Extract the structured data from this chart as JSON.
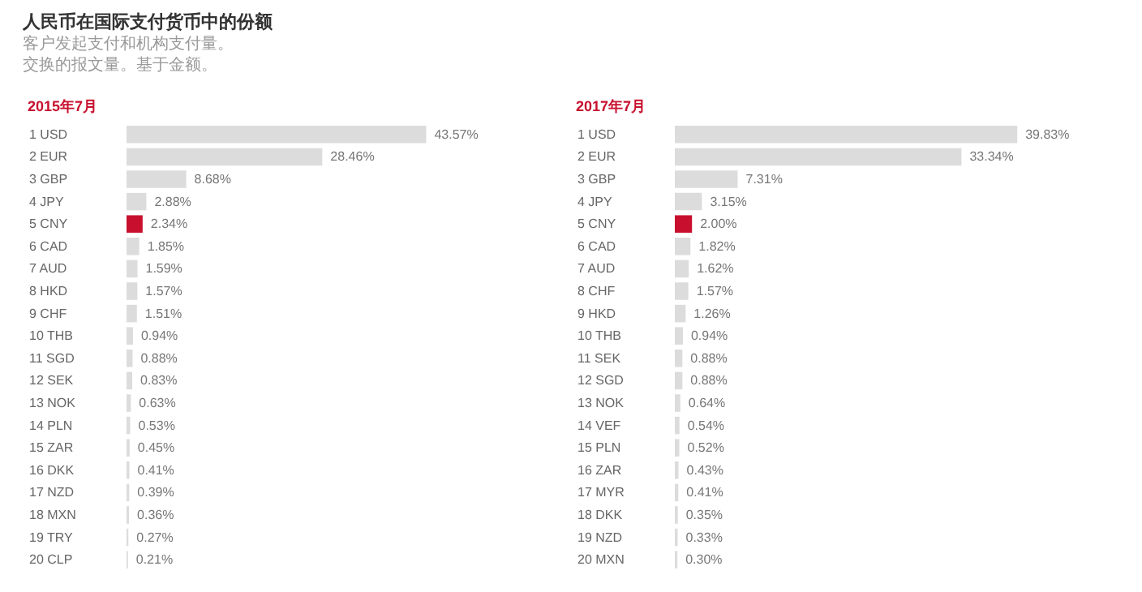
{
  "chart_data": [
    {
      "type": "bar",
      "orientation": "horizontal",
      "title": "2015年7月",
      "annotations": [
        "人民币在国际支付货币中的份额",
        "客户发起支付和机构支付量。",
        "交换的报文量。基于金额。"
      ],
      "categories": [
        "1 USD",
        "2 EUR",
        "3 GBP",
        "4 JPY",
        "5 CNY",
        "6 CAD",
        "7 AUD",
        "8 HKD",
        "9 CHF",
        "10 THB",
        "11 SGD",
        "12 SEK",
        "13 NOK",
        "14 PLN",
        "15 ZAR",
        "16 DKK",
        "17 NZD",
        "18 MXN",
        "19 TRY",
        "20 CLP"
      ],
      "values": [
        43.57,
        28.46,
        8.68,
        2.88,
        2.34,
        1.85,
        1.59,
        1.57,
        1.51,
        0.94,
        0.88,
        0.83,
        0.63,
        0.53,
        0.45,
        0.41,
        0.39,
        0.36,
        0.27,
        0.21
      ],
      "value_labels": [
        "43.57%",
        "28.46%",
        "8.68%",
        "2.88%",
        "2.34%",
        "1.85%",
        "1.59%",
        "1.57%",
        "1.51%",
        "0.94%",
        "0.88%",
        "0.83%",
        "0.63%",
        "0.53%",
        "0.45%",
        "0.41%",
        "0.39%",
        "0.36%",
        "0.27%",
        "0.21%"
      ],
      "colors": [
        "#dcdcdc",
        "#dcdcdc",
        "#dcdcdc",
        "#dcdcdc",
        "#c8102e",
        "#dcdcdc",
        "#dcdcdc",
        "#dcdcdc",
        "#dcdcdc",
        "#dcdcdc",
        "#dcdcdc",
        "#dcdcdc",
        "#dcdcdc",
        "#dcdcdc",
        "#dcdcdc",
        "#dcdcdc",
        "#dcdcdc",
        "#dcdcdc",
        "#dcdcdc",
        "#dcdcdc"
      ]
    },
    {
      "type": "bar",
      "orientation": "horizontal",
      "title": "2017年7月",
      "categories": [
        "1 USD",
        "2 EUR",
        "3 GBP",
        "4 JPY",
        "5 CNY",
        "6 CAD",
        "7 AUD",
        "8 CHF",
        "9 HKD",
        "10 THB",
        "11 SEK",
        "12 SGD",
        "13 NOK",
        "14 VEF",
        "15 PLN",
        "16 ZAR",
        "17 MYR",
        "18 DKK",
        "19 NZD",
        "20 MXN"
      ],
      "values": [
        39.83,
        33.34,
        7.31,
        3.15,
        2.0,
        1.82,
        1.62,
        1.57,
        1.26,
        0.94,
        0.88,
        0.88,
        0.64,
        0.54,
        0.52,
        0.43,
        0.41,
        0.35,
        0.33,
        0.3
      ],
      "value_labels": [
        "39.83%",
        "33.34%",
        "7.31%",
        "3.15%",
        "2.00%",
        "1.82%",
        "1.62%",
        "1.57%",
        "1.26%",
        "0.94%",
        "0.88%",
        "0.88%",
        "0.64%",
        "0.54%",
        "0.52%",
        "0.43%",
        "0.41%",
        "0.35%",
        "0.33%",
        "0.30%"
      ],
      "colors": [
        "#dcdcdc",
        "#dcdcdc",
        "#dcdcdc",
        "#dcdcdc",
        "#c8102e",
        "#dcdcdc",
        "#dcdcdc",
        "#dcdcdc",
        "#dcdcdc",
        "#dcdcdc",
        "#dcdcdc",
        "#dcdcdc",
        "#dcdcdc",
        "#dcdcdc",
        "#dcdcdc",
        "#dcdcdc",
        "#dcdcdc",
        "#dcdcdc",
        "#dcdcdc",
        "#dcdcdc"
      ]
    }
  ]
}
